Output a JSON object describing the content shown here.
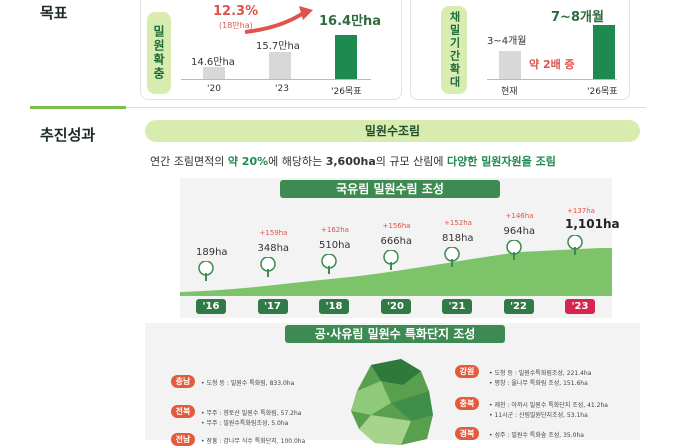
{
  "goal": {
    "section_label": "목표",
    "expand": {
      "pill": "밀원확충",
      "increase_pct": "12.3%",
      "increase_sub": "(18만ha)",
      "bars": [
        {
          "label": "14.6만ha",
          "x": "'20",
          "value": 14.6
        },
        {
          "label": "15.7만ha",
          "x": "'23",
          "value": 15.7
        },
        {
          "label": "16.4만ha",
          "x": "'26목표",
          "value": 16.4
        }
      ]
    },
    "period": {
      "pill": "채밀기간확대",
      "current_label": "3~4개월",
      "target_label": "7~8개월",
      "multiplier": "약 2배 증",
      "bars": [
        {
          "x": "현재",
          "value": 3.5
        },
        {
          "x": "'26목표",
          "value": 7.5
        }
      ]
    }
  },
  "result": {
    "section_label": "추진성과",
    "header": "밀원수조림",
    "desc_prefix": "연간 조림면적의 ",
    "desc_pct": "약 20%",
    "desc_mid": "에 해당하는 ",
    "desc_area": "3,600ha",
    "desc_mid2": "의 규모 산림에 ",
    "desc_end": "다양한 밀원자원을 조림",
    "national_title": "국유림 밀원수림 조성",
    "timeline": [
      {
        "year": "'16",
        "value": "189ha",
        "inc": ""
      },
      {
        "year": "'17",
        "value": "348ha",
        "inc": "+159ha"
      },
      {
        "year": "'18",
        "value": "510ha",
        "inc": "+162ha"
      },
      {
        "year": "'20",
        "value": "666ha",
        "inc": "+156ha"
      },
      {
        "year": "'21",
        "value": "818ha",
        "inc": "+152ha"
      },
      {
        "year": "'22",
        "value": "964ha",
        "inc": "+146ha"
      },
      {
        "year": "'23",
        "value": "1,101ha",
        "inc": "+137ha"
      }
    ],
    "public_title": "공·사유림 밀원수 특화단지 조성",
    "regions_left": [
      {
        "badge": "충남",
        "lines": [
          "• 도청 등 : 밀원수 특화림, 833.0ha"
        ]
      },
      {
        "badge": "전북",
        "lines": [
          "• 무주 : 향토산 밀원수 특화림, 57.2ha",
          "• 무주 : 밀원수특화림조성, 5.0ha"
        ]
      },
      {
        "badge": "전남",
        "lines": [
          "• 장흥 : 감나무 식수 특화단지, 100.0ha"
        ]
      }
    ],
    "regions_right": [
      {
        "badge": "강원",
        "lines": [
          "• 도청 등 : 밀원수특화림조성, 221.4ha",
          "• 평창 : 울나무 특화림 조성, 151.6ha"
        ]
      },
      {
        "badge": "충북",
        "lines": [
          "• 제천 : 아까시 밀원수 특화단지 조성, 41.2ha",
          "• 11시군 : 산림밀원단지조성, 53.1ha"
        ]
      },
      {
        "badge": "경북",
        "lines": [
          "• 성주 : 밀원수 특화숲 조성, 35.0ha"
        ]
      }
    ]
  }
}
